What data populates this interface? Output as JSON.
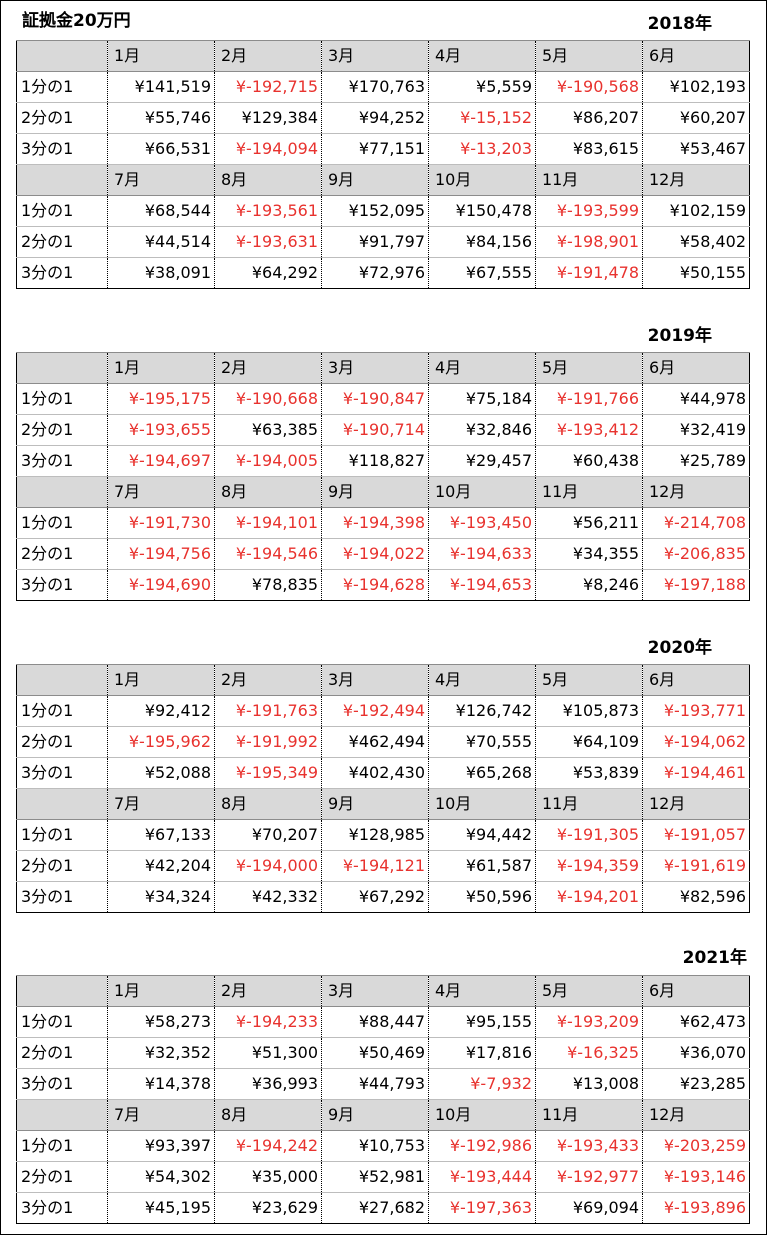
{
  "title": "証拠金20万円",
  "row_labels": [
    "1分の1",
    "2分の1",
    "3分の1"
  ],
  "months_h1": [
    "1月",
    "2月",
    "3月",
    "4月",
    "5月",
    "6月"
  ],
  "months_h2": [
    "7月",
    "8月",
    "9月",
    "10月",
    "11月",
    "12月"
  ],
  "colors": {
    "negative": "#e8322e",
    "header_bg": "#d9d9d9"
  },
  "years": [
    {
      "label": "2018年",
      "h1": [
        [
          "¥141,519",
          "¥-192,715",
          "¥170,763",
          "¥5,559",
          "¥-190,568",
          "¥102,193"
        ],
        [
          "¥55,746",
          "¥129,384",
          "¥94,252",
          "¥-15,152",
          "¥86,207",
          "¥60,207"
        ],
        [
          "¥66,531",
          "¥-194,094",
          "¥77,151",
          "¥-13,203",
          "¥83,615",
          "¥53,467"
        ]
      ],
      "h2": [
        [
          "¥68,544",
          "¥-193,561",
          "¥152,095",
          "¥150,478",
          "¥-193,599",
          "¥102,159"
        ],
        [
          "¥44,514",
          "¥-193,631",
          "¥91,797",
          "¥84,156",
          "¥-198,901",
          "¥58,402"
        ],
        [
          "¥38,091",
          "¥64,292",
          "¥72,976",
          "¥67,555",
          "¥-191,478",
          "¥50,155"
        ]
      ]
    },
    {
      "label": "2019年",
      "h1": [
        [
          "¥-195,175",
          "¥-190,668",
          "¥-190,847",
          "¥75,184",
          "¥-191,766",
          "¥44,978"
        ],
        [
          "¥-193,655",
          "¥63,385",
          "¥-190,714",
          "¥32,846",
          "¥-193,412",
          "¥32,419"
        ],
        [
          "¥-194,697",
          "¥-194,005",
          "¥118,827",
          "¥29,457",
          "¥60,438",
          "¥25,789"
        ]
      ],
      "h2": [
        [
          "¥-191,730",
          "¥-194,101",
          "¥-194,398",
          "¥-193,450",
          "¥56,211",
          "¥-214,708"
        ],
        [
          "¥-194,756",
          "¥-194,546",
          "¥-194,022",
          "¥-194,633",
          "¥34,355",
          "¥-206,835"
        ],
        [
          "¥-194,690",
          "¥78,835",
          "¥-194,628",
          "¥-194,653",
          "¥8,246",
          "¥-197,188"
        ]
      ]
    },
    {
      "label": "2020年",
      "h1": [
        [
          "¥92,412",
          "¥-191,763",
          "¥-192,494",
          "¥126,742",
          "¥105,873",
          "¥-193,771"
        ],
        [
          "¥-195,962",
          "¥-191,992",
          "¥462,494",
          "¥70,555",
          "¥64,109",
          "¥-194,062"
        ],
        [
          "¥52,088",
          "¥-195,349",
          "¥402,430",
          "¥65,268",
          "¥53,839",
          "¥-194,461"
        ]
      ],
      "h2": [
        [
          "¥67,133",
          "¥70,207",
          "¥128,985",
          "¥94,442",
          "¥-191,305",
          "¥-191,057"
        ],
        [
          "¥42,204",
          "¥-194,000",
          "¥-194,121",
          "¥61,587",
          "¥-194,359",
          "¥-191,619"
        ],
        [
          "¥34,324",
          "¥42,332",
          "¥67,292",
          "¥50,596",
          "¥-194,201",
          "¥82,596"
        ]
      ]
    },
    {
      "label": "2021年",
      "h1": [
        [
          "¥58,273",
          "¥-194,233",
          "¥88,447",
          "¥95,155",
          "¥-193,209",
          "¥62,473"
        ],
        [
          "¥32,352",
          "¥51,300",
          "¥50,469",
          "¥17,816",
          "¥-16,325",
          "¥36,070"
        ],
        [
          "¥14,378",
          "¥36,993",
          "¥44,793",
          "¥-7,932",
          "¥13,008",
          "¥23,285"
        ]
      ],
      "h2": [
        [
          "¥93,397",
          "¥-194,242",
          "¥10,753",
          "¥-192,986",
          "¥-193,433",
          "¥-203,259"
        ],
        [
          "¥54,302",
          "¥35,000",
          "¥52,981",
          "¥-193,444",
          "¥-192,977",
          "¥-193,146"
        ],
        [
          "¥45,195",
          "¥23,629",
          "¥27,682",
          "¥-197,363",
          "¥69,094",
          "¥-193,896"
        ]
      ]
    }
  ]
}
